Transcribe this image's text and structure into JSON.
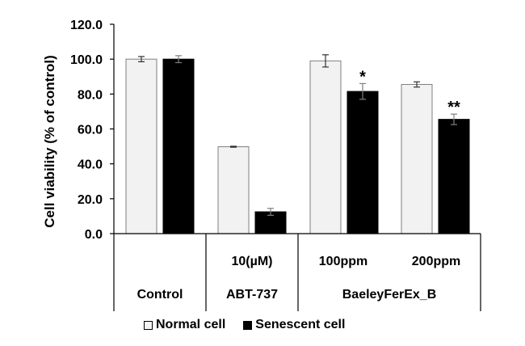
{
  "chart_data": {
    "type": "bar",
    "ylabel": "Cell viability (% of control)",
    "ylim": [
      0,
      120
    ],
    "yticks": [
      "0.0",
      "20.0",
      "40.0",
      "60.0",
      "80.0",
      "100.0",
      "120.0"
    ],
    "groups": [
      {
        "name": "Control",
        "sub": "",
        "normal": 100,
        "normal_err": 1.5,
        "senescent": 100,
        "senescent_err": 2,
        "normal_sig": "",
        "senescent_sig": ""
      },
      {
        "name": "ABT-737",
        "sub": "10(µM)",
        "normal": 49.8,
        "normal_err": 0.3,
        "senescent": 12.5,
        "senescent_err": 2,
        "normal_sig": "",
        "senescent_sig": ""
      },
      {
        "name": "BaeleyFerEx_B",
        "sub": "100ppm",
        "normal": 99,
        "normal_err": 3.5,
        "senescent": 81.5,
        "senescent_err": 4.5,
        "normal_sig": "",
        "senescent_sig": "*"
      },
      {
        "name": "BaeleyFerEx_B",
        "sub": "200ppm",
        "normal": 85.5,
        "normal_err": 1.5,
        "senescent": 65.5,
        "senescent_err": 3,
        "normal_sig": "",
        "senescent_sig": "**"
      }
    ],
    "bottom_labels": [
      "Control",
      "ABT-737",
      "BaeleyFerEx_B"
    ],
    "series": [
      {
        "name": "Normal cell",
        "color": "#f2f2f2"
      },
      {
        "name": "Senescent cell",
        "color": "#000000"
      }
    ]
  }
}
